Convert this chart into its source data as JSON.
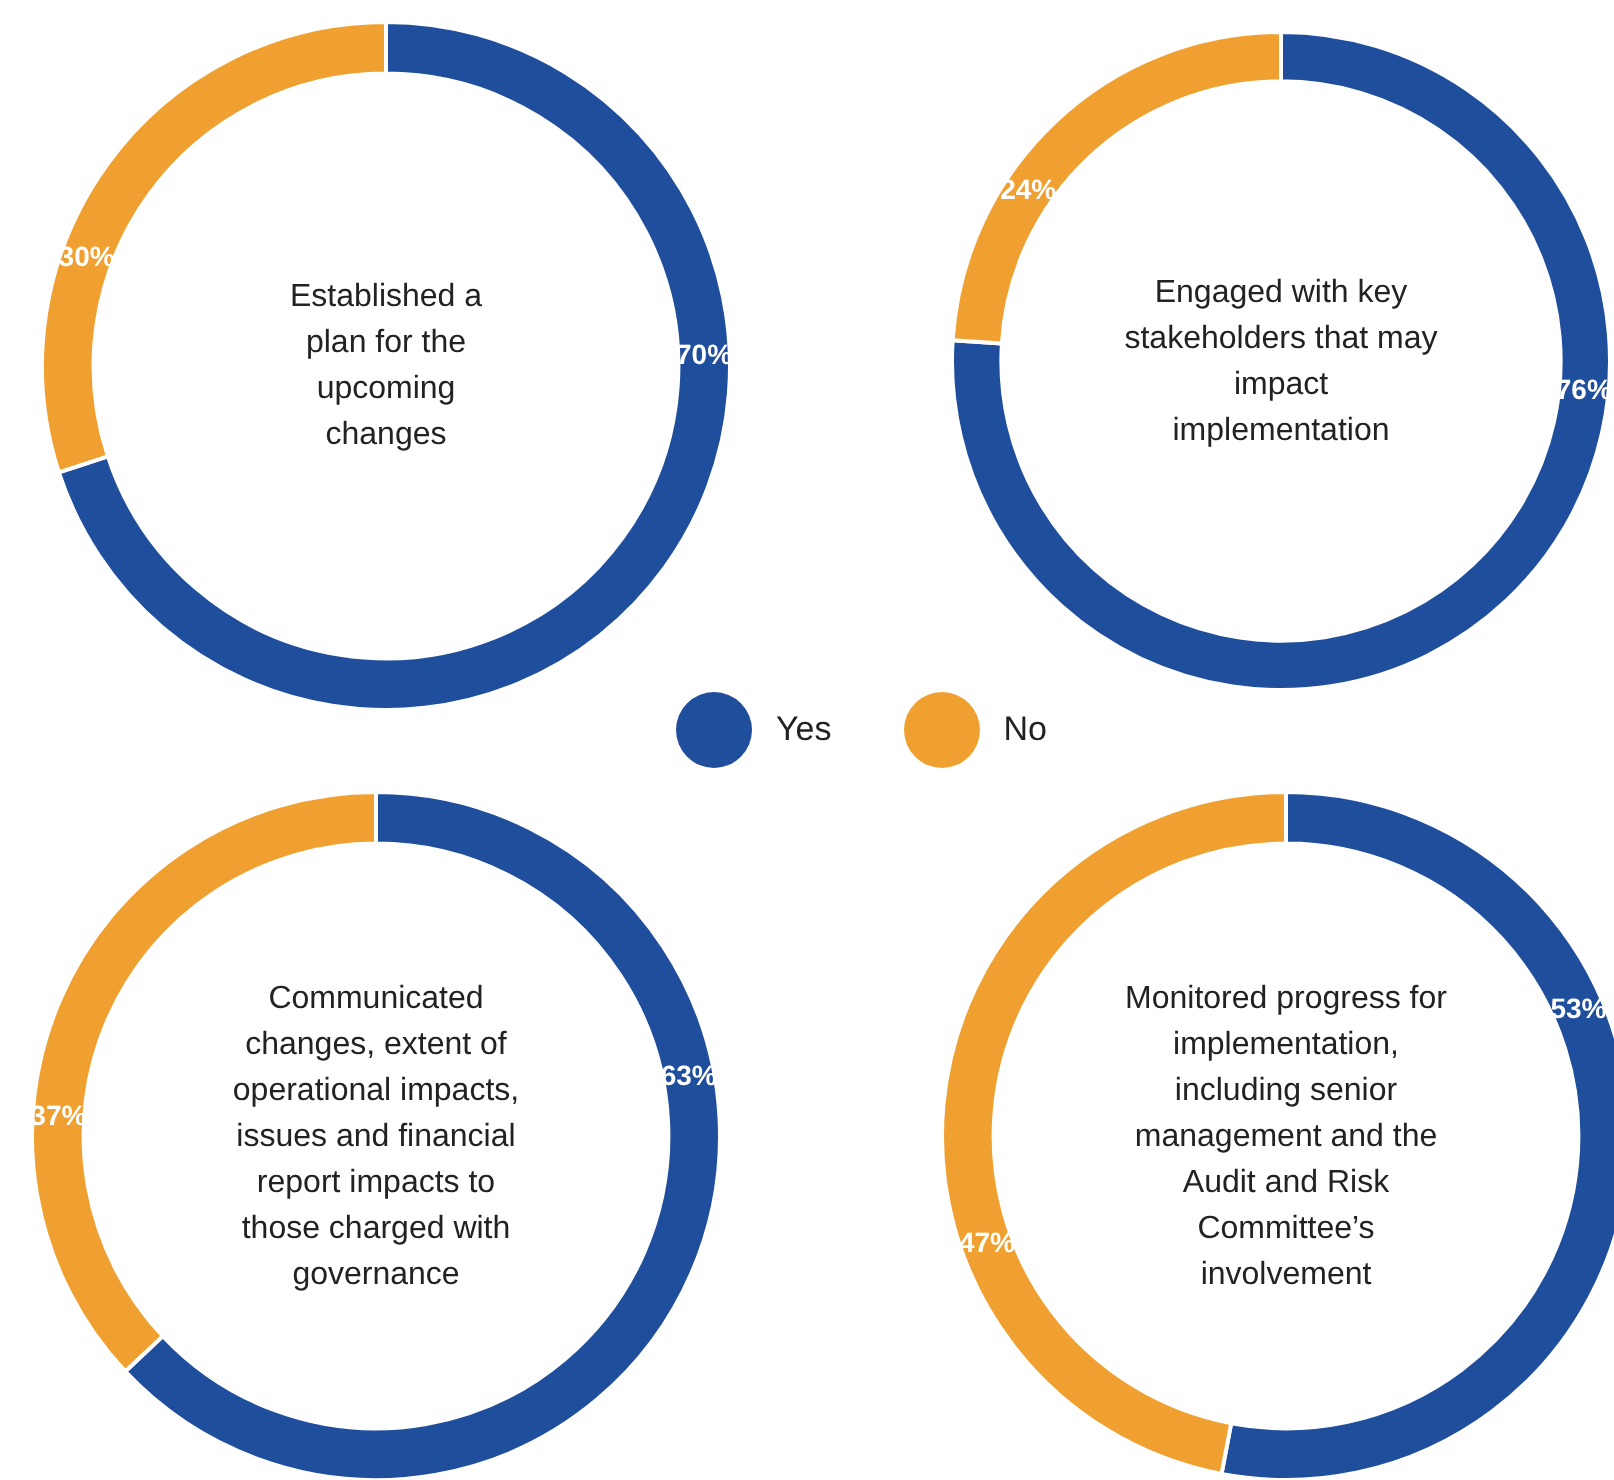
{
  "chart_data": [
    {
      "type": "donut",
      "title": "Established a plan for the upcoming changes",
      "categories": [
        "Yes",
        "No"
      ],
      "values": [
        70,
        30
      ],
      "colors": [
        "#1f4e9c",
        "#f0a030"
      ],
      "value_labels": [
        "70%",
        "30%"
      ],
      "legend": "bottom right"
    },
    {
      "type": "donut",
      "title": "Engaged with key stakeholders that may impact implementation",
      "categories": [
        null,
        null
      ],
      "values": [
        76,
        24
      ],
      "colors": [
        "#1f4e9c",
        "#f0a030"
      ],
      "value_labels": [
        "76%",
        "24%"
      ]
    },
    {
      "type": "donut",
      "title": "Communicated changes, extent of operational impacts, issues and financial report impacts to those charged with governance",
      "categories": [
        null,
        null
      ],
      "values": [
        63,
        37
      ],
      "colors": [
        "#1f4e9c",
        "#f0a030"
      ],
      "value_labels": [
        "63%",
        "37%"
      ]
    },
    {
      "type": "donut",
      "title": "Monitored  progress for implementation, including senior management and the Audit and Risk Committee’s involvement",
      "categories": [
        null,
        null
      ],
      "values": [
        53,
        47
      ],
      "colors": [
        "#1f4e9c",
        "#f0a030"
      ],
      "value_labels": [
        "53%",
        "47%"
      ]
    }
  ]
}
